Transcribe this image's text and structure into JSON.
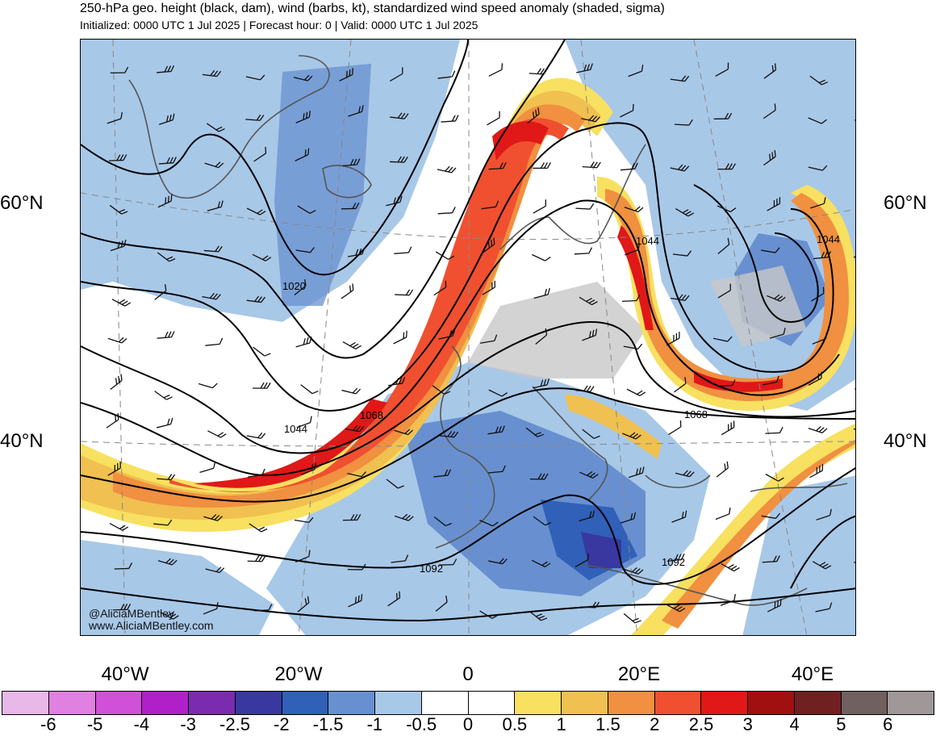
{
  "header": {
    "title": "250-hPa geo. height (black, dam), wind (barbs, kt), standardized wind speed anomaly (shaded, sigma)",
    "subtitle": "Initialized: 0000 UTC 1 Jul 2025 | Forecast hour: 0 | Valid: 0000 UTC 1 Jul 2025"
  },
  "map": {
    "lat_labels": {
      "lat60_left": "60°N",
      "lat60_right": "60°N",
      "lat40_left": "40°N",
      "lat40_right": "40°N"
    },
    "lon_labels": [
      "40°W",
      "20°W",
      "0",
      "20°E",
      "40°E"
    ],
    "contour_labels": {
      "c1020": "1020",
      "c1044_atlantic": "1044",
      "c1044_russia_a": "1044",
      "c1044_russia_b": "1044",
      "c1068_atlantic": "1068",
      "c1068_europe": "1068",
      "c1092_iberia": "1092",
      "c1092_med": "1092"
    },
    "credit_handle": "@AliciaMBentley",
    "credit_site": "www.AliciaMBentley.com"
  },
  "colorbar": {
    "colors": [
      "#e8b8e8",
      "#e080e0",
      "#d050d8",
      "#b020c8",
      "#7a2bb0",
      "#3838a0",
      "#3060b8",
      "#6890d0",
      "#a8c8e8",
      "#ffffff",
      "#ffffff",
      "#f8e060",
      "#f0c050",
      "#f09040",
      "#f05030",
      "#e01818",
      "#a01010",
      "#702020",
      "#706060",
      "#a09898"
    ],
    "ticks": [
      "-6",
      "-5",
      "-4",
      "-3",
      "-2.5",
      "-2",
      "-1.5",
      "-1",
      "-0.5",
      "0",
      "0.5",
      "1",
      "1.5",
      "2",
      "2.5",
      "3",
      "4",
      "5",
      "6"
    ]
  }
}
